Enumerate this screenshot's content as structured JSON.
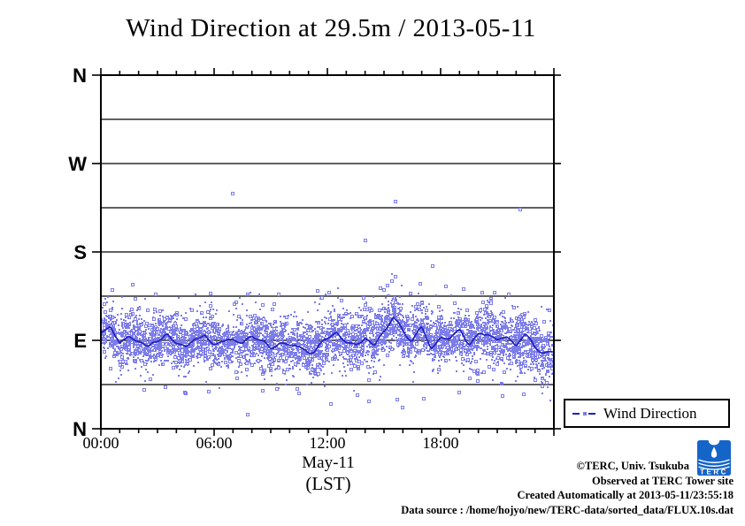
{
  "title": "Wind Direction at 29.5m / 2013-05-11",
  "chart_data": {
    "type": "scatter",
    "title": "Wind Direction at 29.5m / 2013-05-11",
    "description": "10-second wind direction samples over 24 hours, dense band centered near E (~90 deg) all day with a dark running-mean line and sparse outliers toward S/W and below NE.",
    "xlabel_date": "May-11",
    "xlabel_unit": "(LST)",
    "x_axis": {
      "range_hours": [
        0,
        24
      ],
      "major_ticks": [
        {
          "hour": 0,
          "label": "00:00"
        },
        {
          "hour": 6,
          "label": "06:00"
        },
        {
          "hour": 12,
          "label": "12:00"
        },
        {
          "hour": 18,
          "label": "18:00"
        }
      ],
      "minor_tick_every_hours": 1,
      "grid": false
    },
    "y_axis": {
      "unit": "compass direction, degrees (0=N bottom, 360=N top)",
      "range": [
        0,
        360
      ],
      "major_ticks": [
        {
          "deg": 360,
          "label": "N"
        },
        {
          "deg": 270,
          "label": "W"
        },
        {
          "deg": 180,
          "label": "S"
        },
        {
          "deg": 90,
          "label": "E"
        },
        {
          "deg": 0,
          "label": "N"
        }
      ],
      "gridlines_deg": [
        315,
        270,
        225,
        180,
        135,
        90,
        45
      ],
      "grid": true
    },
    "legend": {
      "label": "Wind Direction",
      "position": "bottom-right-outside"
    },
    "series": [
      {
        "name": "Wind Direction",
        "render": "scatter-band-with-mean-line",
        "colors": {
          "scatter": "#7d7dea",
          "line": "#2020bf"
        },
        "mean_line_half_hour_deg": [
          97,
          104,
          86,
          94,
          90,
          84,
          92,
          96,
          88,
          82,
          90,
          95,
          89,
          84,
          91,
          86,
          94,
          90,
          84,
          88,
          83,
          87,
          80,
          84,
          92,
          99,
          88,
          84,
          93,
          88,
          100,
          114,
          98,
          93,
          103,
          86,
          94,
          89,
          97,
          88,
          94,
          99,
          90,
          95,
          86,
          93,
          82,
          76,
          74
        ],
        "scatter": {
          "n_points": 4500,
          "sigma_deg": 13.5,
          "outlier_fraction": 0.05,
          "outlier_sigma_mult": 2.3,
          "seed": 7
        },
        "outliers_high_hour_deg": [
          [
            7.0,
            239
          ],
          [
            15.6,
            231
          ],
          [
            22.2,
            223
          ],
          [
            14.0,
            192
          ],
          [
            17.6,
            166
          ],
          [
            15.6,
            155
          ],
          [
            15.4,
            150
          ],
          [
            15.2,
            146
          ],
          [
            15.0,
            141
          ],
          [
            14.8,
            143
          ],
          [
            11.5,
            140
          ],
          [
            0.6,
            141
          ],
          [
            1.7,
            147
          ],
          [
            5.8,
            138
          ],
          [
            9.4,
            137
          ],
          [
            12.1,
            139
          ],
          [
            16.4,
            138
          ],
          [
            19.2,
            142
          ],
          [
            20.2,
            139
          ],
          [
            21.6,
            137
          ],
          [
            18.3,
            145
          ],
          [
            2.9,
            137
          ]
        ],
        "outliers_low_hour_deg": [
          [
            7.8,
            14
          ],
          [
            2.3,
            40
          ],
          [
            5.7,
            38
          ],
          [
            10.5,
            36
          ],
          [
            13.6,
            34
          ],
          [
            15.7,
            30
          ],
          [
            17.1,
            31
          ],
          [
            19.0,
            37
          ],
          [
            21.3,
            33
          ],
          [
            12.2,
            25
          ],
          [
            16.0,
            22
          ],
          [
            3.4,
            42
          ],
          [
            22.4,
            35
          ],
          [
            8.6,
            39
          ],
          [
            14.2,
            28
          ]
        ]
      }
    ],
    "frame_color": "#000000"
  },
  "footer": {
    "credit1": "©TERC, Univ. Tsukuba",
    "credit2": "Observed at TERC Tower site",
    "credit3": "Created Automatically at 2013-05-11/23:55:18",
    "credit4": "Data source : /home/hojyo/new/TERC-data/sorted_data/FLUX.10s.dat",
    "logo_text": "TERC",
    "logo_color": "#1565c8"
  }
}
